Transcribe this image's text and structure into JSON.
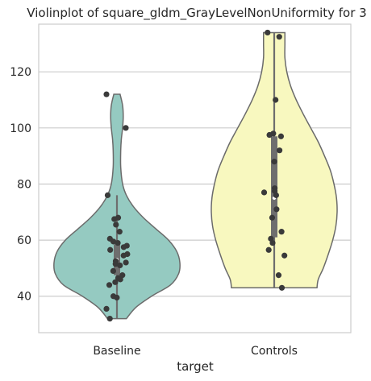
{
  "chart_data": {
    "type": "violin",
    "title": "Violinplot of square_gldm_GrayLevelNonUniformity for 3",
    "xlabel": "target",
    "ylabel": "",
    "ylim": [
      27,
      137
    ],
    "yticks": [
      40,
      60,
      80,
      100,
      120
    ],
    "grid": true,
    "categories": [
      "Baseline",
      "Controls"
    ],
    "colors": {
      "Baseline": "#95cac1",
      "Controls": "#f8f8bf",
      "points": "#3a3a3a",
      "box": "#6e6e6e",
      "outline": "#6b6b6b",
      "grid": "#cccccc"
    },
    "series": [
      {
        "name": "Baseline",
        "min": 32,
        "max": 112,
        "q1": 47.5,
        "median": 53,
        "q3": 58.5,
        "whisker_low": 32,
        "whisker_high": 76,
        "density": [
          [
            32,
            0.15
          ],
          [
            36,
            0.3
          ],
          [
            40,
            0.55
          ],
          [
            44,
            0.85
          ],
          [
            48,
            0.98
          ],
          [
            52,
            1.0
          ],
          [
            56,
            0.95
          ],
          [
            60,
            0.82
          ],
          [
            64,
            0.62
          ],
          [
            68,
            0.42
          ],
          [
            72,
            0.26
          ],
          [
            76,
            0.15
          ],
          [
            80,
            0.09
          ],
          [
            86,
            0.06
          ],
          [
            92,
            0.06
          ],
          [
            96,
            0.07
          ],
          [
            100,
            0.09
          ],
          [
            104,
            0.1
          ],
          [
            108,
            0.09
          ],
          [
            112,
            0.05
          ]
        ],
        "points": [
          112,
          100,
          76,
          68,
          67.5,
          65.5,
          63,
          60.5,
          59.5,
          59,
          58,
          57.5,
          56.5,
          55,
          54.5,
          52.5,
          52,
          51.5,
          51,
          49,
          47.5,
          46.5,
          46,
          45,
          44,
          40,
          39.5,
          35.5,
          32
        ]
      },
      {
        "name": "Controls",
        "min": 43,
        "max": 134,
        "q1": 61,
        "median": 75,
        "q3": 97,
        "whisker_low": 43,
        "whisker_high": 134,
        "density": [
          [
            43,
            0.68
          ],
          [
            46,
            0.7
          ],
          [
            50,
            0.78
          ],
          [
            55,
            0.86
          ],
          [
            60,
            0.93
          ],
          [
            65,
            0.98
          ],
          [
            70,
            1.0
          ],
          [
            75,
            0.99
          ],
          [
            80,
            0.95
          ],
          [
            85,
            0.89
          ],
          [
            90,
            0.8
          ],
          [
            95,
            0.7
          ],
          [
            100,
            0.58
          ],
          [
            105,
            0.46
          ],
          [
            110,
            0.35
          ],
          [
            115,
            0.26
          ],
          [
            120,
            0.2
          ],
          [
            125,
            0.17
          ],
          [
            130,
            0.17
          ],
          [
            134,
            0.17
          ]
        ],
        "points": [
          134,
          132.5,
          110,
          98,
          97.5,
          97,
          92,
          88,
          78.5,
          77.5,
          77,
          76,
          71,
          68,
          63,
          60.5,
          59,
          56.5,
          54.5,
          47.5,
          43
        ]
      }
    ]
  }
}
